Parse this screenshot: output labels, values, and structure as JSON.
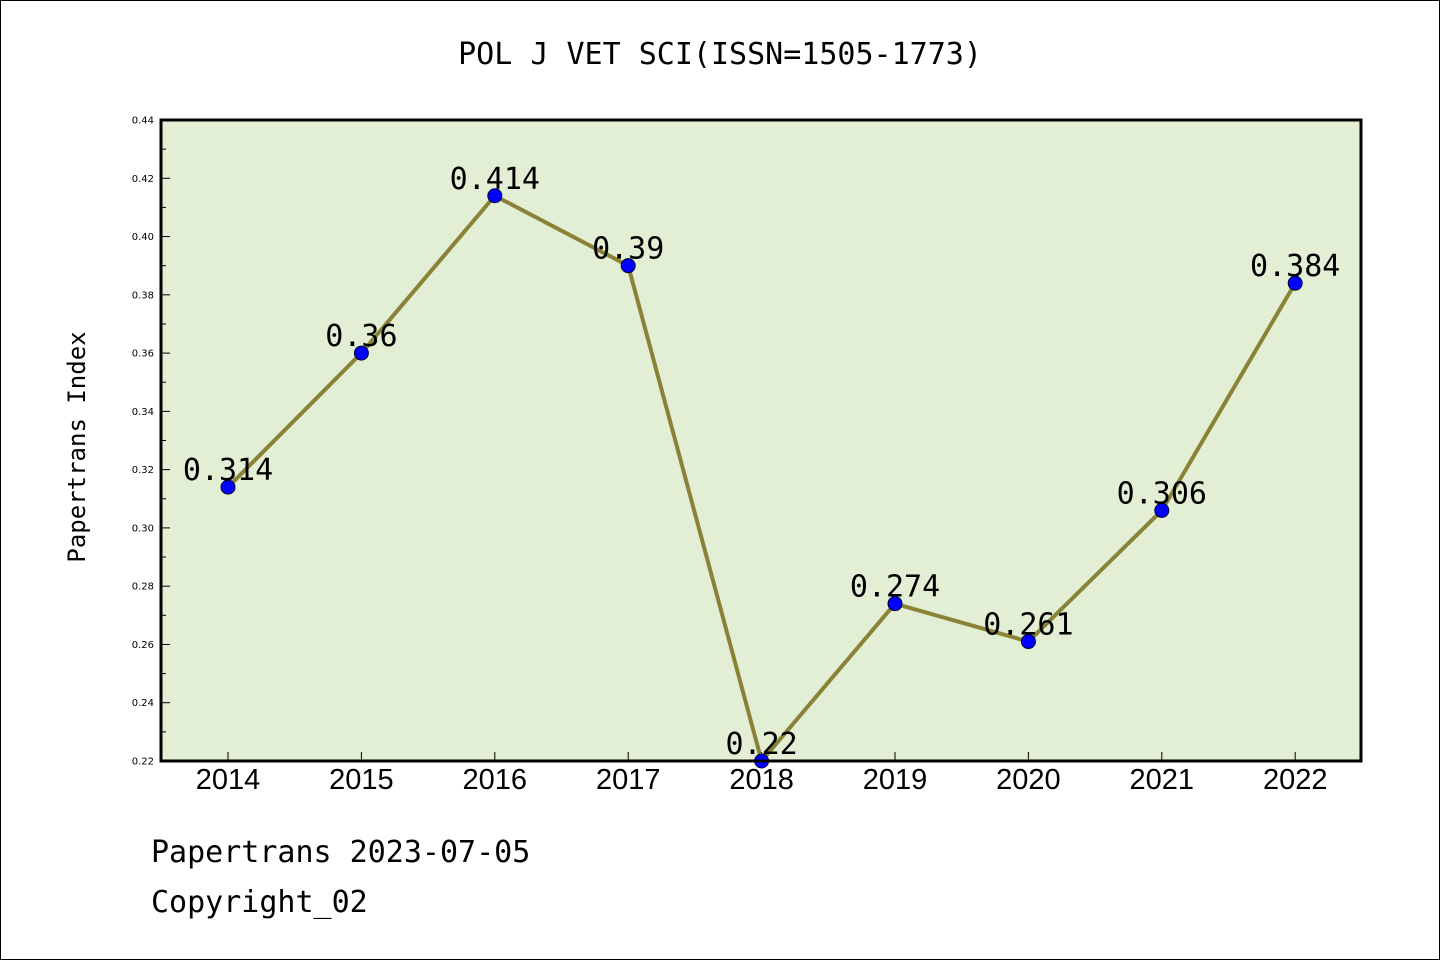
{
  "chart_data": {
    "type": "line",
    "title": "POL J VET SCI(ISSN=1505-1773)",
    "xlabel": "",
    "ylabel": "Papertrans Index",
    "categories": [
      "2014",
      "2015",
      "2016",
      "2017",
      "2018",
      "2019",
      "2020",
      "2021",
      "2022"
    ],
    "series": [
      {
        "values": [
          0.314,
          0.36,
          0.414,
          0.39,
          0.22,
          0.274,
          0.261,
          0.306,
          0.384
        ],
        "data_labels": [
          "0.314",
          "0.36",
          "0.414",
          "0.39",
          "0.22",
          "0.274",
          "0.261",
          "0.306",
          "0.384"
        ]
      }
    ],
    "ylim": [
      0.22,
      0.44
    ],
    "yticks": [
      "0.22",
      "0.24",
      "0.26",
      "0.28",
      "0.30",
      "0.32",
      "0.34",
      "0.36",
      "0.38",
      "0.40",
      "0.42",
      "0.44"
    ],
    "grid": false,
    "colors": {
      "plot_background": "#e2efd5",
      "line": "#8a8236",
      "marker": "#0000ff",
      "frame": "#000000"
    }
  },
  "footer": {
    "date_line": "Papertrans 2023-07-05",
    "copyright": "Copyright_02"
  }
}
